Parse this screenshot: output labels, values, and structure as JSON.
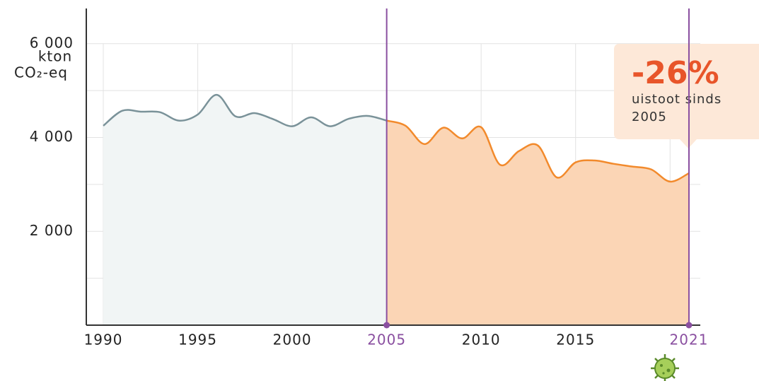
{
  "chart_data": {
    "type": "line",
    "x": [
      1990,
      1991,
      1992,
      1993,
      1994,
      1995,
      1996,
      1997,
      1998,
      1999,
      2000,
      2001,
      2002,
      2003,
      2004,
      2005,
      2006,
      2007,
      2008,
      2009,
      2010,
      2011,
      2012,
      2013,
      2014,
      2015,
      2016,
      2017,
      2018,
      2019,
      2020,
      2021
    ],
    "series": [
      {
        "color": "#7a9299",
        "fill": "#f1f5f5",
        "values": [
          4250,
          4570,
          4550,
          4540,
          4360,
          4490,
          4910,
          4450,
          4520,
          4390,
          4240,
          4430,
          4240,
          4400,
          4460,
          4360,
          null,
          null,
          null,
          null,
          null,
          null,
          null,
          null,
          null,
          null,
          null,
          null,
          null,
          null,
          null,
          null
        ]
      },
      {
        "color": "#f28a2c",
        "fill": "#fbd5b5",
        "values": [
          null,
          null,
          null,
          null,
          null,
          null,
          null,
          null,
          null,
          null,
          null,
          null,
          null,
          null,
          null,
          4360,
          4250,
          3860,
          4210,
          3980,
          4220,
          3420,
          3710,
          3830,
          3150,
          3470,
          3510,
          3440,
          3380,
          3320,
          3060,
          3240
        ]
      }
    ],
    "xlim": [
      1989.1,
      2021.6
    ],
    "ylim": [
      0,
      6750
    ],
    "xticks": [
      1990,
      1995,
      2000,
      2005,
      2010,
      2015,
      2021
    ],
    "yticks": [
      {
        "value": 2000,
        "label": "2 000"
      },
      {
        "value": 4000,
        "label": "4 000"
      },
      {
        "value": 6000,
        "label": "6 000"
      }
    ],
    "ygrid": [
      1000,
      2000,
      3000,
      4000,
      5000,
      6000
    ],
    "xgrid": [
      1990,
      1995,
      2000,
      2005,
      2010,
      2015,
      2020
    ],
    "highlight": [
      2005,
      2021
    ],
    "highlight_color": "#8a4fa0",
    "y_unit": [
      "kton",
      "CO₂-eq"
    ],
    "annotation": {
      "value": "-26%",
      "text": "uistoot sinds 2005"
    }
  }
}
